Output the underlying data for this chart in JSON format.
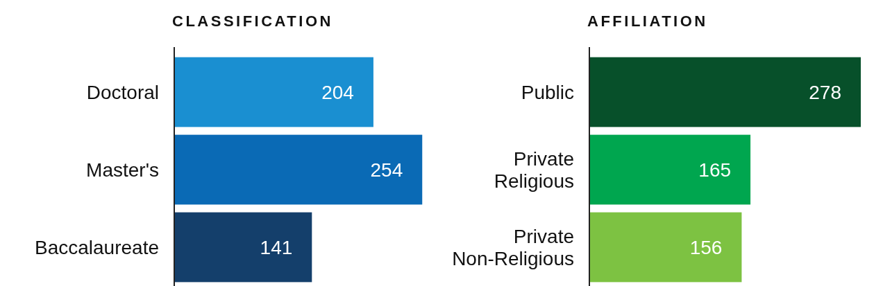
{
  "chart_data": [
    {
      "type": "bar",
      "orientation": "horizontal",
      "title": "CLASSIFICATION",
      "categories": [
        "Doctoral",
        "Master's",
        "Baccalaureate"
      ],
      "values": [
        204,
        254,
        141
      ],
      "colors": [
        "#1a8fd1",
        "#0a6ab5",
        "#143f6b"
      ],
      "data_labels": true
    },
    {
      "type": "bar",
      "orientation": "horizontal",
      "title": "AFFILIATION",
      "categories": [
        "Public",
        "Private Religious",
        "Private Non-Religious"
      ],
      "values": [
        278,
        165,
        156
      ],
      "colors": [
        "#07502a",
        "#00a64f",
        "#7dc242"
      ],
      "data_labels": true
    }
  ]
}
